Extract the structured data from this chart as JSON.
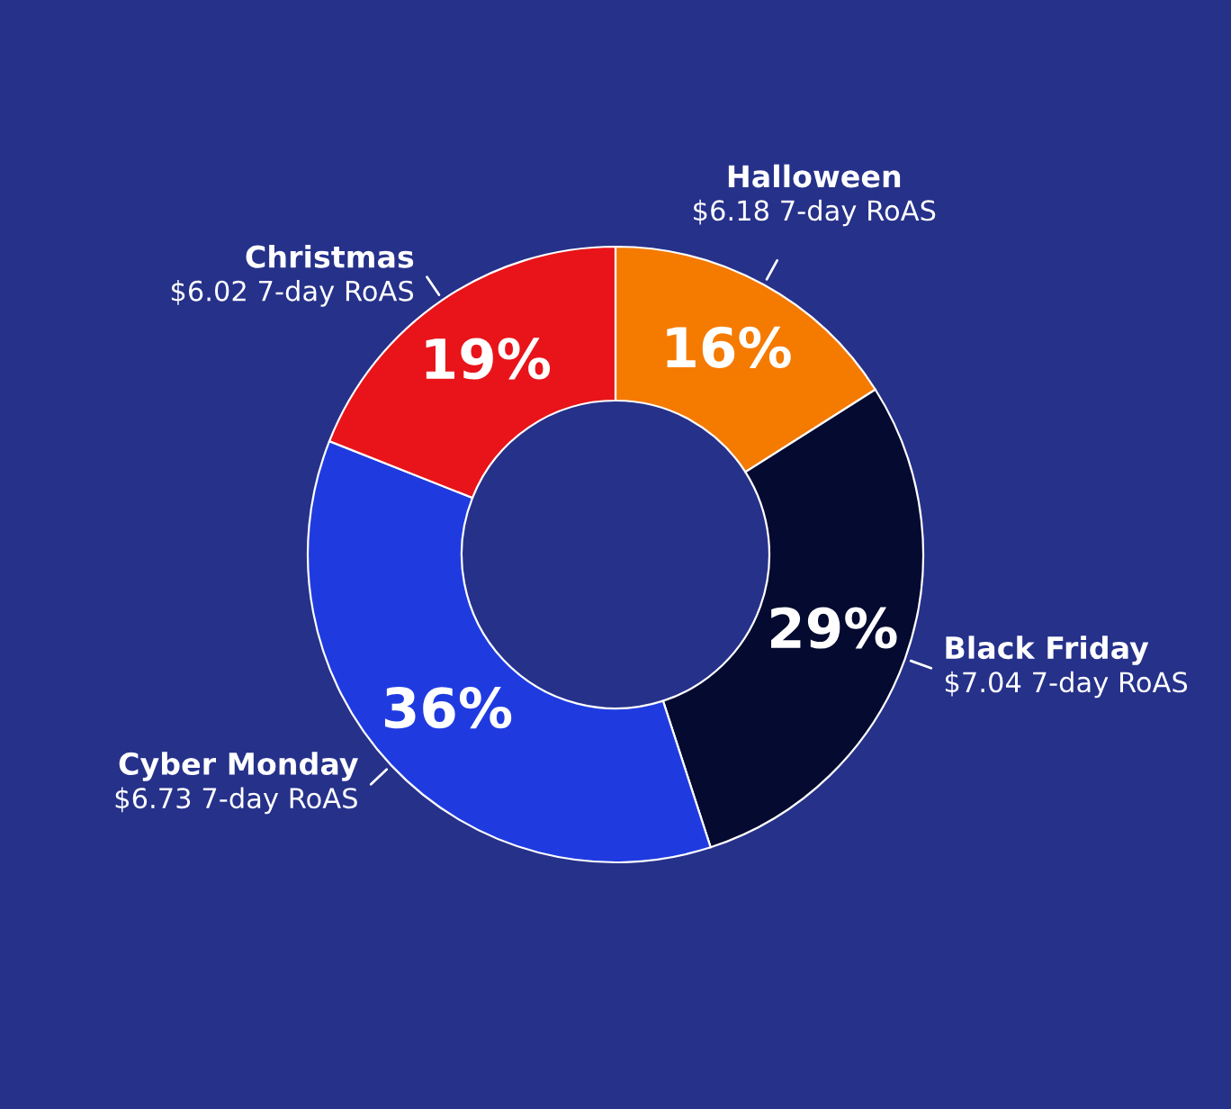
{
  "chart_data": {
    "type": "donut",
    "categories": [
      "Halloween",
      "Black Friday",
      "Cyber Monday",
      "Christmas"
    ],
    "values": [
      16,
      29,
      36,
      19
    ],
    "colors": [
      "#f57a00",
      "#050a30",
      "#1f3be0",
      "#e8141a"
    ],
    "value_labels": [
      "16%",
      "29%",
      "36%",
      "19%"
    ],
    "annotations": [
      "$6.18 7-day RoAS",
      "$7.04 7-day RoAS",
      "$6.73 7-day RoAS",
      "$6.02 7-day RoAS"
    ]
  }
}
